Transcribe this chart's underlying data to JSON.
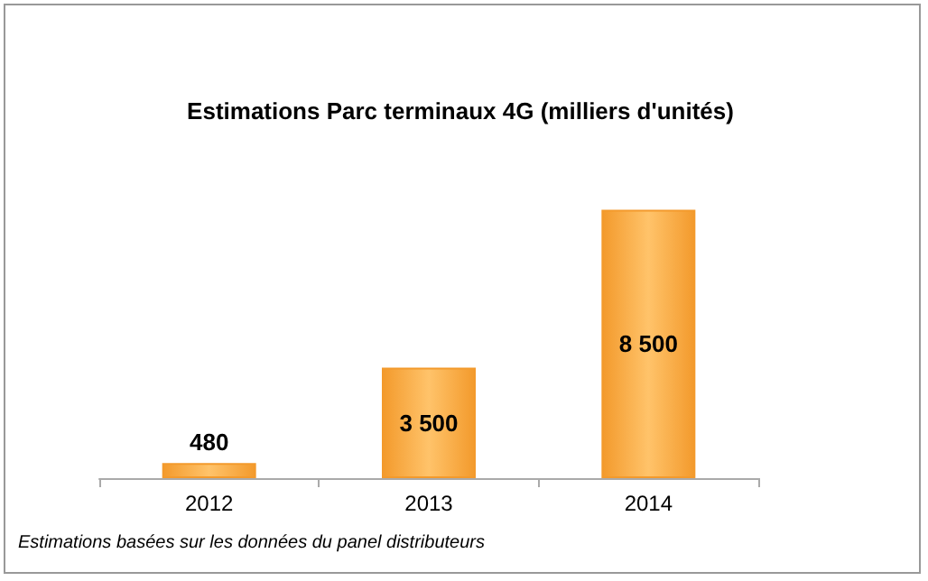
{
  "chart_data": {
    "type": "bar",
    "title": "Estimations Parc terminaux 4G (milliers d'unités)",
    "categories": [
      "2012",
      "2013",
      "2014"
    ],
    "values": [
      480,
      3500,
      8500
    ],
    "value_labels": [
      "480",
      "3 500",
      "8 500"
    ],
    "color": "#f39a2c",
    "annotations": [
      "Estimations basées sur les données du panel distributeurs"
    ]
  }
}
